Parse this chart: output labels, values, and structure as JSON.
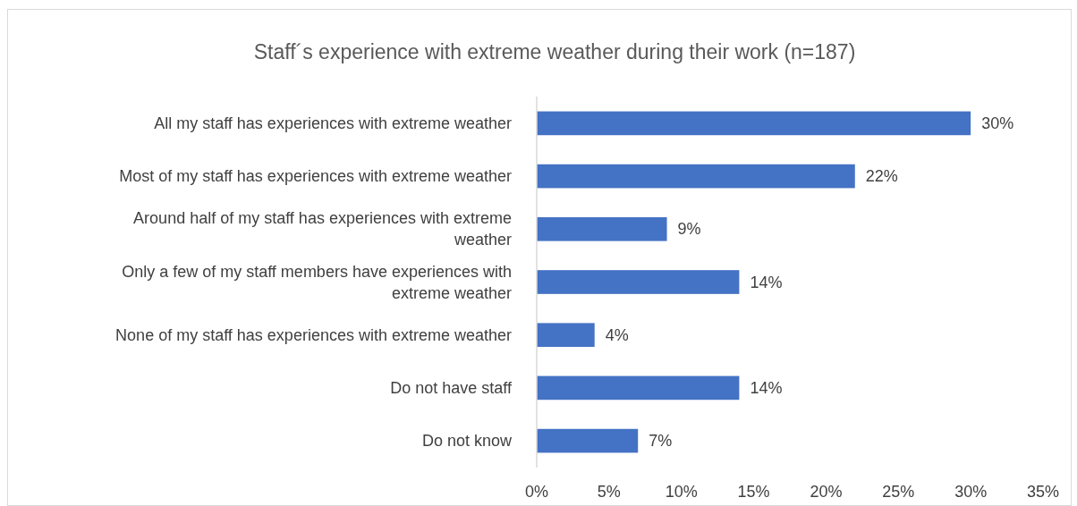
{
  "chart_data": {
    "type": "bar",
    "orientation": "horizontal",
    "title": "Staff´s experience with extreme weather during their work (n=187)",
    "categories": [
      "All my staff has experiences with extreme weather",
      "Most of my staff has experiences with extreme weather",
      "Around half of my staff has experiences with extreme weather",
      "Only a few of my staff members have experiences with extreme weather",
      "None of my staff has experiences with extreme weather",
      "Do not have staff",
      "Do not know"
    ],
    "values": [
      30,
      22,
      9,
      14,
      4,
      14,
      7
    ],
    "value_labels": [
      "30%",
      "22%",
      "9%",
      "14%",
      "4%",
      "14%",
      "7%"
    ],
    "color": "#4472c4",
    "xlim": [
      0,
      35
    ],
    "xticks": [
      {
        "value": 0,
        "label": "0%"
      },
      {
        "value": 5,
        "label": "5%"
      },
      {
        "value": 10,
        "label": "10%"
      },
      {
        "value": 15,
        "label": "15%"
      },
      {
        "value": 20,
        "label": "20%"
      },
      {
        "value": 25,
        "label": "25%"
      },
      {
        "value": 30,
        "label": "30%"
      },
      {
        "value": 35,
        "label": "35%"
      }
    ],
    "grid": false
  }
}
